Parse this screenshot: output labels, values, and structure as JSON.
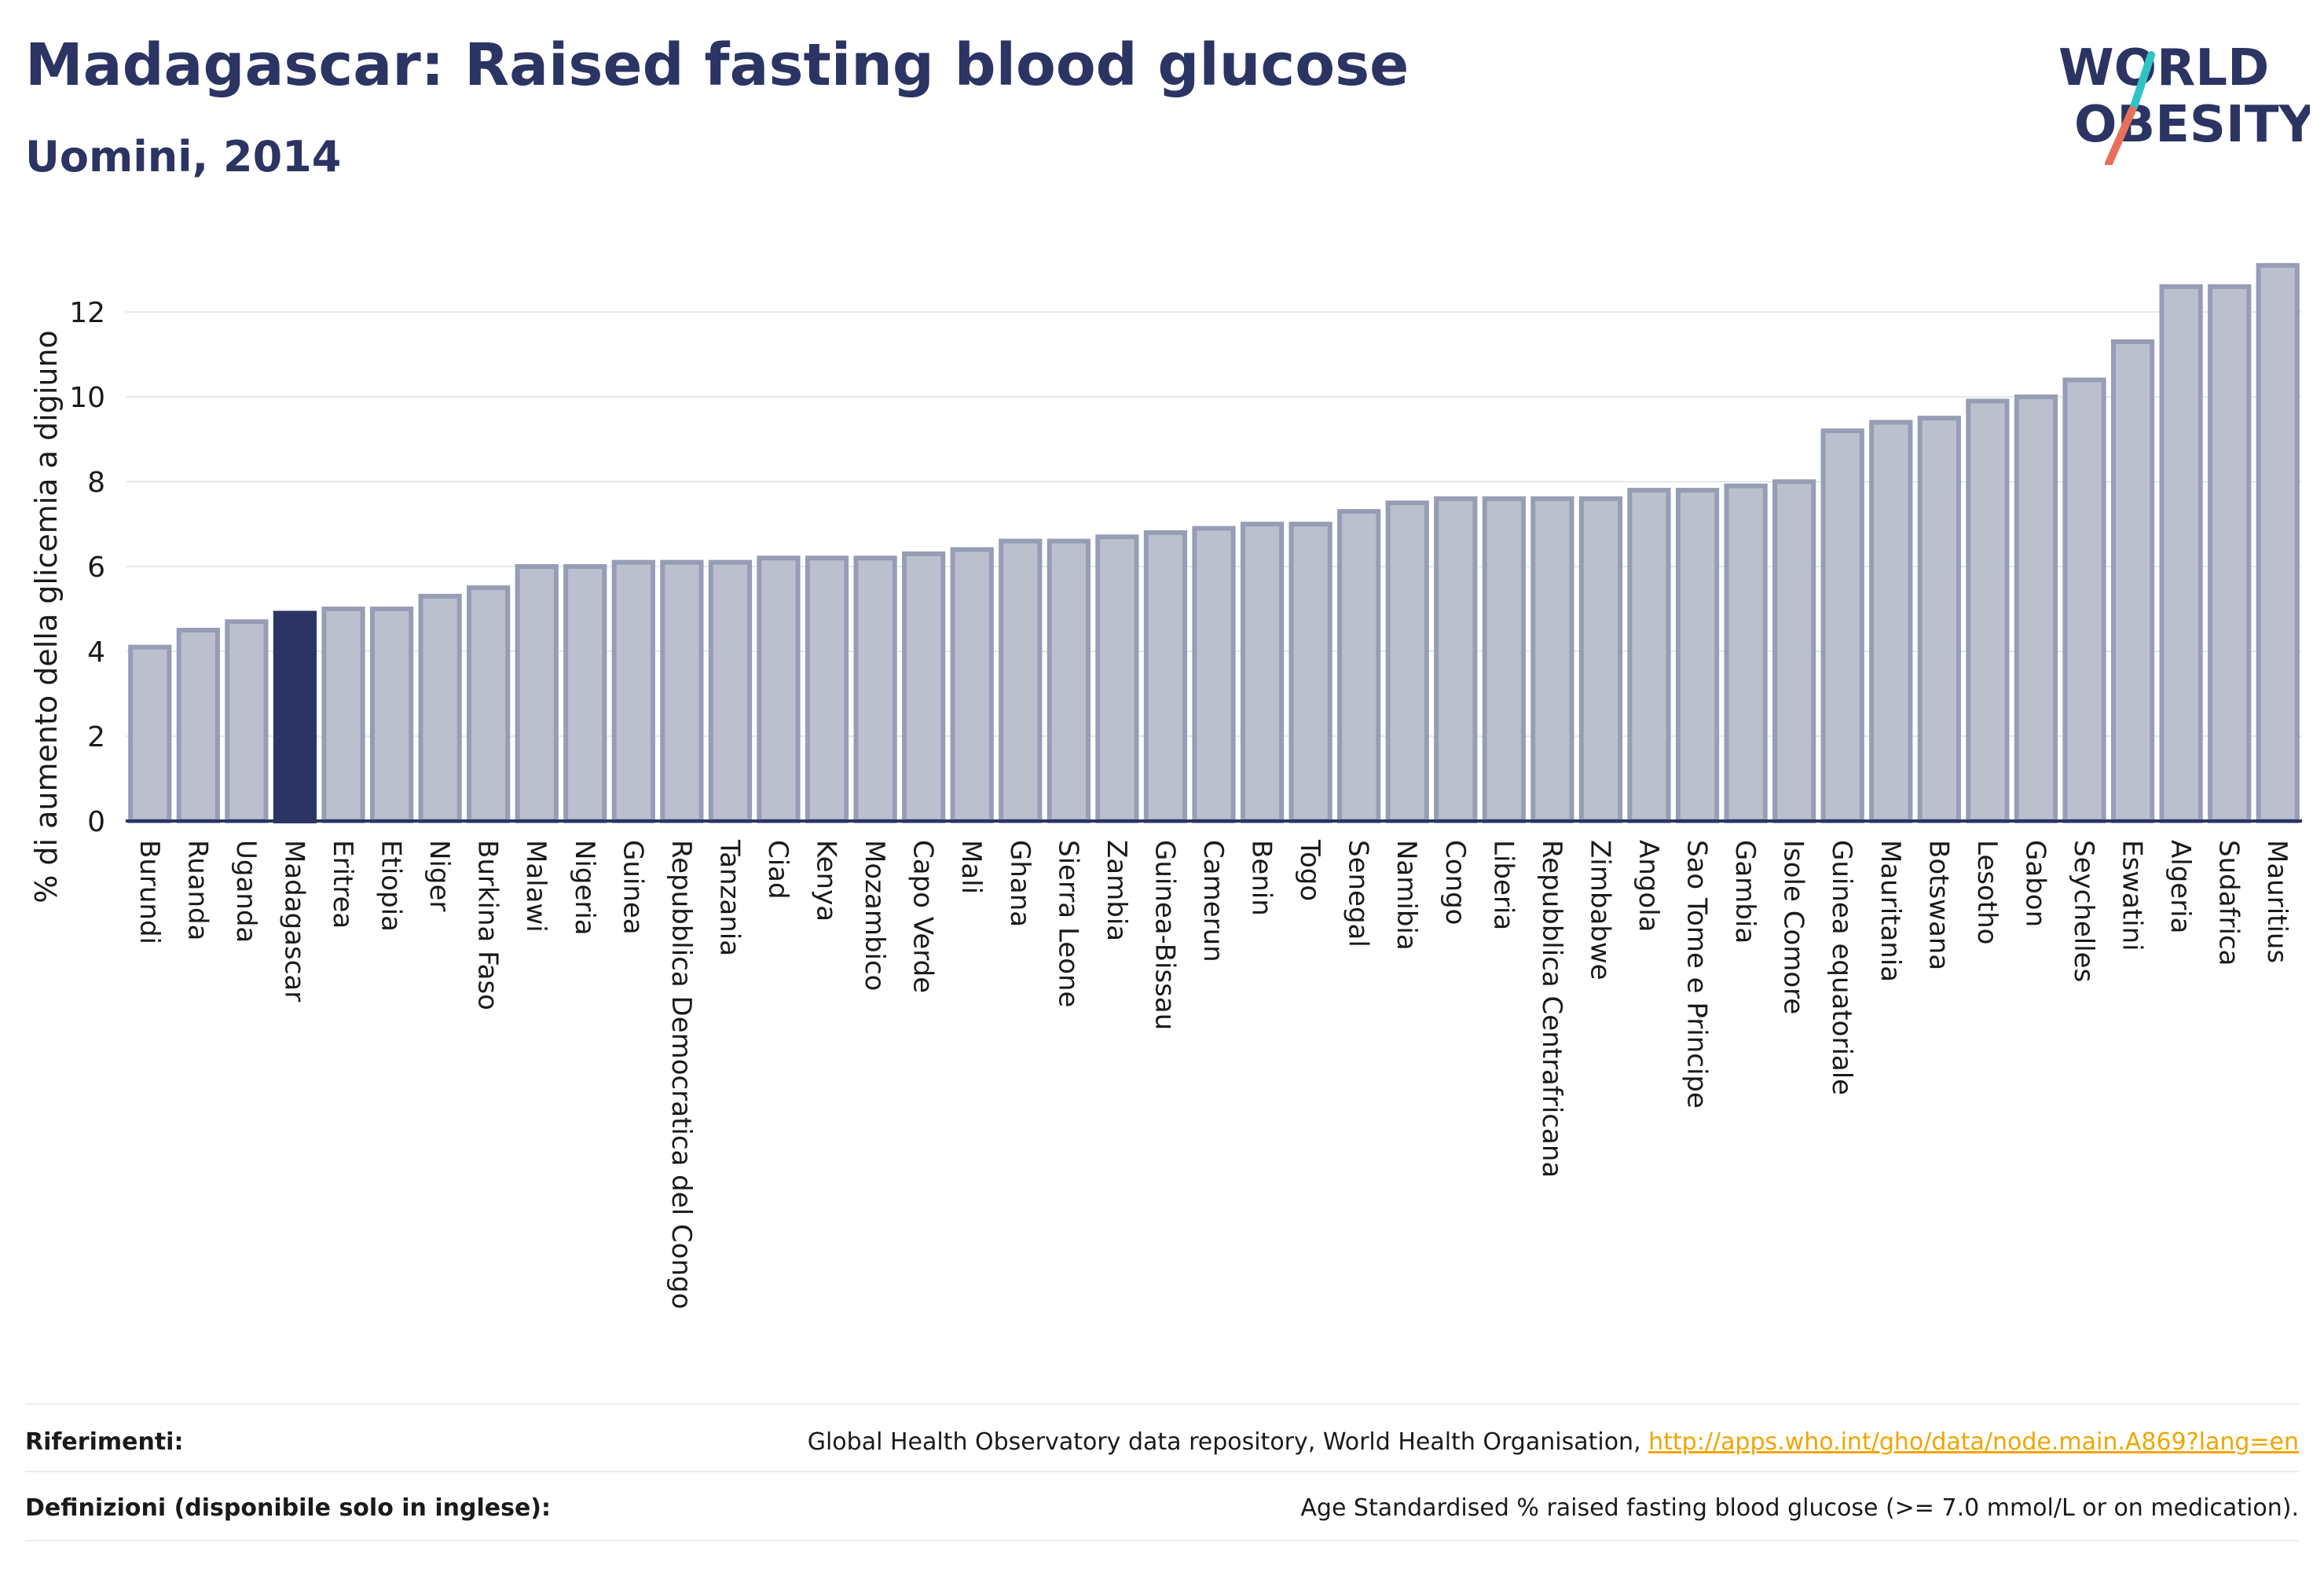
{
  "header": {
    "title": "Madagascar: Raised fasting blood glucose",
    "subtitle": "Uomini, 2014"
  },
  "logo": {
    "line1": "WORLD",
    "line2": "OBESITY",
    "colors": {
      "text": "#2b3463",
      "slash_teal": "#2ec4c4",
      "slash_coral": "#e8705a"
    }
  },
  "chart_data": {
    "type": "bar",
    "ylabel": "% di aumento della glicemia a digiuno",
    "ylim": [
      0,
      13.8
    ],
    "yticks": [
      0,
      2,
      4,
      6,
      8,
      10,
      12
    ],
    "grid": true,
    "highlight": "Madagascar",
    "colors": {
      "bar": "#bcc0ce",
      "bar_edge": "#979db5",
      "highlight": "#2b3463",
      "grid": "#e6e8ef",
      "axis": "#2b3463"
    },
    "categories": [
      "Burundi",
      "Ruanda",
      "Uganda",
      "Madagascar",
      "Eritrea",
      "Etiopia",
      "Niger",
      "Burkina Faso",
      "Malawi",
      "Nigeria",
      "Guinea",
      "Repubblica Democratica del Congo",
      "Tanzania",
      "Ciad",
      "Kenya",
      "Mozambico",
      "Capo Verde",
      "Mali",
      "Ghana",
      "Sierra Leone",
      "Zambia",
      "Guinea-Bissau",
      "Camerun",
      "Benin",
      "Togo",
      "Senegal",
      "Namibia",
      "Congo",
      "Liberia",
      "Repubblica Centrafricana",
      "Zimbabwe",
      "Angola",
      "Sao Tome e Principe",
      "Gambia",
      "Isole Comore",
      "Guinea equatoriale",
      "Mauritania",
      "Botswana",
      "Lesotho",
      "Gabon",
      "Seychelles",
      "Eswatini",
      "Algeria",
      "Sudafrica",
      "Mauritius"
    ],
    "values": [
      4.1,
      4.5,
      4.7,
      4.9,
      5.0,
      5.0,
      5.3,
      5.5,
      6.0,
      6.0,
      6.1,
      6.1,
      6.1,
      6.2,
      6.2,
      6.2,
      6.3,
      6.4,
      6.6,
      6.6,
      6.7,
      6.8,
      6.9,
      7.0,
      7.0,
      7.3,
      7.5,
      7.6,
      7.6,
      7.6,
      7.6,
      7.8,
      7.8,
      7.9,
      8.0,
      9.2,
      9.4,
      9.5,
      9.9,
      10.0,
      10.4,
      11.3,
      12.6,
      12.6,
      13.1
    ]
  },
  "footer": {
    "references_label": "Riferimenti:",
    "references_text": "Global Health Observatory data repository, World Health Organisation, ",
    "references_link": "http://apps.who.int/gho/data/node.main.A869?lang=en",
    "definitions_label": "Definizioni (disponibile solo in inglese):",
    "definitions_text": "Age Standardised % raised fasting blood glucose (>= 7.0 mmol/L or on medication)."
  }
}
